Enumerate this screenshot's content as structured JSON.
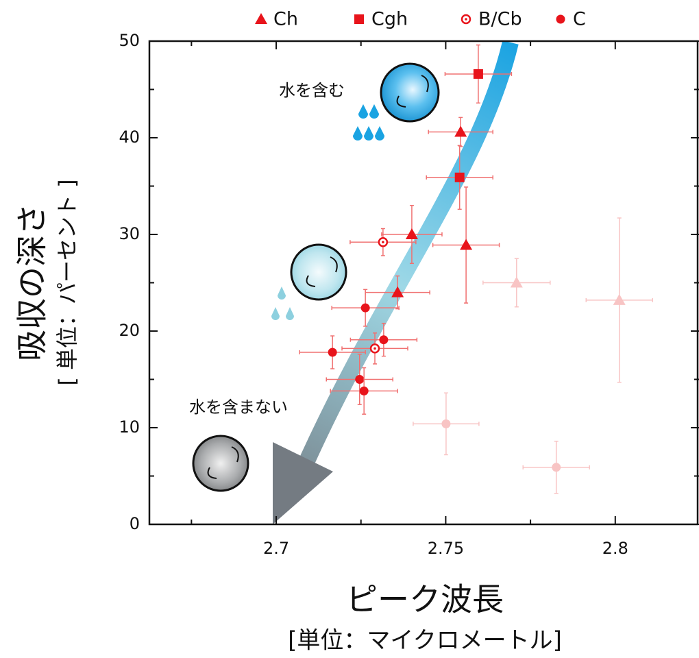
{
  "chart_data": {
    "type": "scatter",
    "x_label": "ピーク波長",
    "x_sublabel": "[単位：マイクロメートル]",
    "y_label": "吸収の深さ",
    "y_sublabel": "[ 単位：パーセント ]",
    "annotations": [
      "水を含む",
      "水を含まない"
    ],
    "xlim": [
      2.6626,
      2.8247
    ],
    "xticks": [
      2.7,
      2.75,
      2.8
    ],
    "x_minor_ticks": [
      2.675,
      2.725,
      2.775
    ],
    "ylim": [
      0,
      50
    ],
    "yticks": [
      0,
      10,
      20,
      30,
      40,
      50
    ],
    "y_minor_ticks": [
      5,
      15,
      25,
      35,
      45
    ],
    "legend": "top",
    "series": [
      {
        "name": "Ch",
        "marker": "triangle",
        "color": "#e8141b",
        "x": [
          2.7544,
          2.74,
          2.756,
          2.7358,
          2.7709,
          2.8012
        ],
        "values": [
          40.6,
          30.0,
          28.9,
          24.0,
          25.0,
          23.2
        ],
        "xerr": [
          0.0095,
          0.0089,
          0.0098,
          0.0095,
          0.0099,
          0.0098
        ],
        "yerr": [
          1.5,
          3.0,
          6.0,
          1.7,
          2.5,
          8.5
        ],
        "point_colors": [
          "#e8141b",
          "#e8141b",
          "#e8141b",
          "#e8141b",
          "#f8c4c4",
          "#f8c4c4"
        ]
      },
      {
        "name": "Cgh",
        "marker": "square",
        "color": "#e8141b",
        "x": [
          2.7596,
          2.7541
        ],
        "values": [
          46.6,
          35.9
        ],
        "xerr": [
          0.0098,
          0.0098
        ],
        "yerr": [
          3.0,
          3.3
        ],
        "point_colors": [
          "#e8141b",
          "#e8141b"
        ]
      },
      {
        "name": "B/Cb",
        "marker": "open-circle",
        "color": "#e8141b",
        "x": [
          2.7315,
          2.7291
        ],
        "values": [
          29.2,
          18.2
        ],
        "xerr": [
          0.0097,
          0.0097
        ],
        "yerr": [
          1.4,
          1.6
        ],
        "point_colors": [
          "#e8141b",
          "#e8141b"
        ]
      },
      {
        "name": "C",
        "marker": "circle",
        "color": "#e8141b",
        "x": [
          2.7263,
          2.7317,
          2.7166,
          2.7246,
          2.7259,
          2.7501,
          2.7826
        ],
        "values": [
          22.4,
          19.1,
          17.8,
          15.0,
          13.8,
          10.4,
          5.9
        ],
        "xerr": [
          0.0099,
          0.0098,
          0.0097,
          0.0098,
          0.0099,
          0.0097,
          0.0098
        ],
        "yerr": [
          1.9,
          1.7,
          1.7,
          2.6,
          2.4,
          3.2,
          2.7
        ],
        "point_colors": [
          "#e8141b",
          "#e8141b",
          "#e8141b",
          "#e8141b",
          "#e8141b",
          "#f8c4c4",
          "#f8c4c4"
        ]
      }
    ]
  }
}
